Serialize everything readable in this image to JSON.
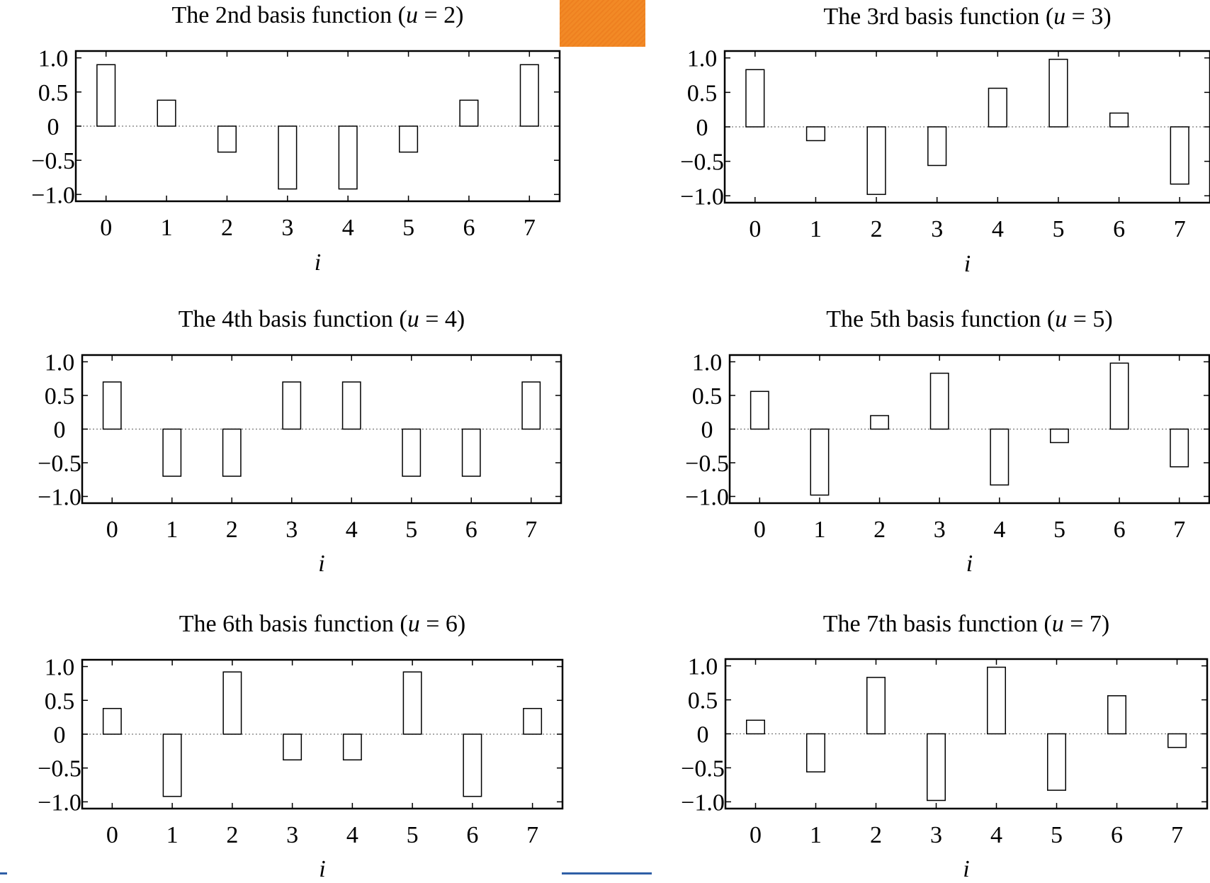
{
  "colors": {
    "axis": "#000000",
    "bar_stroke": "#000000",
    "bar_fill": "#ffffff",
    "zero_line": "#777777",
    "orange_patch": "#f28a26",
    "blue_line": "#2f5fa7"
  },
  "chart_data": [
    {
      "type": "bar",
      "title_prefix": "The 2nd basis function (",
      "title_var": "u",
      "title_suffix": " = 2)",
      "xlabel": "i",
      "categories": [
        "0",
        "1",
        "2",
        "3",
        "4",
        "5",
        "6",
        "7"
      ],
      "values": [
        0.9,
        0.38,
        -0.38,
        -0.92,
        -0.92,
        -0.38,
        0.38,
        0.9
      ],
      "yticks": [
        "1.0",
        "0.5",
        "0",
        "−0.5",
        "−1.0"
      ],
      "ylim": [
        -1.1,
        1.1
      ]
    },
    {
      "type": "bar",
      "title_prefix": "The 3rd basis function (",
      "title_var": "u",
      "title_suffix": " = 3)",
      "xlabel": "i",
      "categories": [
        "0",
        "1",
        "2",
        "3",
        "4",
        "5",
        "6",
        "7"
      ],
      "values": [
        0.83,
        -0.2,
        -0.98,
        -0.56,
        0.56,
        0.98,
        0.2,
        -0.83
      ],
      "yticks": [
        "1.0",
        "0.5",
        "0",
        "−0.5",
        "−1.0"
      ],
      "ylim": [
        -1.1,
        1.1
      ]
    },
    {
      "type": "bar",
      "title_prefix": "The 4th basis function (",
      "title_var": "u",
      "title_suffix": " = 4)",
      "xlabel": "i",
      "categories": [
        "0",
        "1",
        "2",
        "3",
        "4",
        "5",
        "6",
        "7"
      ],
      "values": [
        0.7,
        -0.7,
        -0.7,
        0.7,
        0.7,
        -0.7,
        -0.7,
        0.7
      ],
      "yticks": [
        "1.0",
        "0.5",
        "0",
        "−0.5",
        "−1.0"
      ],
      "ylim": [
        -1.1,
        1.1
      ]
    },
    {
      "type": "bar",
      "title_prefix": "The 5th basis function (",
      "title_var": "u",
      "title_suffix": " = 5)",
      "xlabel": "i",
      "categories": [
        "0",
        "1",
        "2",
        "3",
        "4",
        "5",
        "6",
        "7"
      ],
      "values": [
        0.56,
        -0.98,
        0.2,
        0.83,
        -0.83,
        -0.2,
        0.98,
        -0.56
      ],
      "yticks": [
        "1.0",
        "0.5",
        "0",
        "−0.5",
        "−1.0"
      ],
      "ylim": [
        -1.1,
        1.1
      ]
    },
    {
      "type": "bar",
      "title_prefix": "The 6th basis function (",
      "title_var": "u",
      "title_suffix": " = 6)",
      "xlabel": "i",
      "categories": [
        "0",
        "1",
        "2",
        "3",
        "4",
        "5",
        "6",
        "7"
      ],
      "values": [
        0.38,
        -0.92,
        0.92,
        -0.38,
        -0.38,
        0.92,
        -0.92,
        0.38
      ],
      "yticks": [
        "1.0",
        "0.5",
        "0",
        "−0.5",
        "−1.0"
      ],
      "ylim": [
        -1.1,
        1.1
      ]
    },
    {
      "type": "bar",
      "title_prefix": "The 7th basis function (",
      "title_var": "u",
      "title_suffix": " = 7)",
      "xlabel": "i",
      "categories": [
        "0",
        "1",
        "2",
        "3",
        "4",
        "5",
        "6",
        "7"
      ],
      "values": [
        0.2,
        -0.56,
        0.83,
        -0.98,
        0.98,
        -0.83,
        0.56,
        -0.2
      ],
      "yticks": [
        "1.0",
        "0.5",
        "0",
        "−0.5",
        "−1.0"
      ],
      "ylim": [
        -1.1,
        1.1
      ]
    }
  ]
}
